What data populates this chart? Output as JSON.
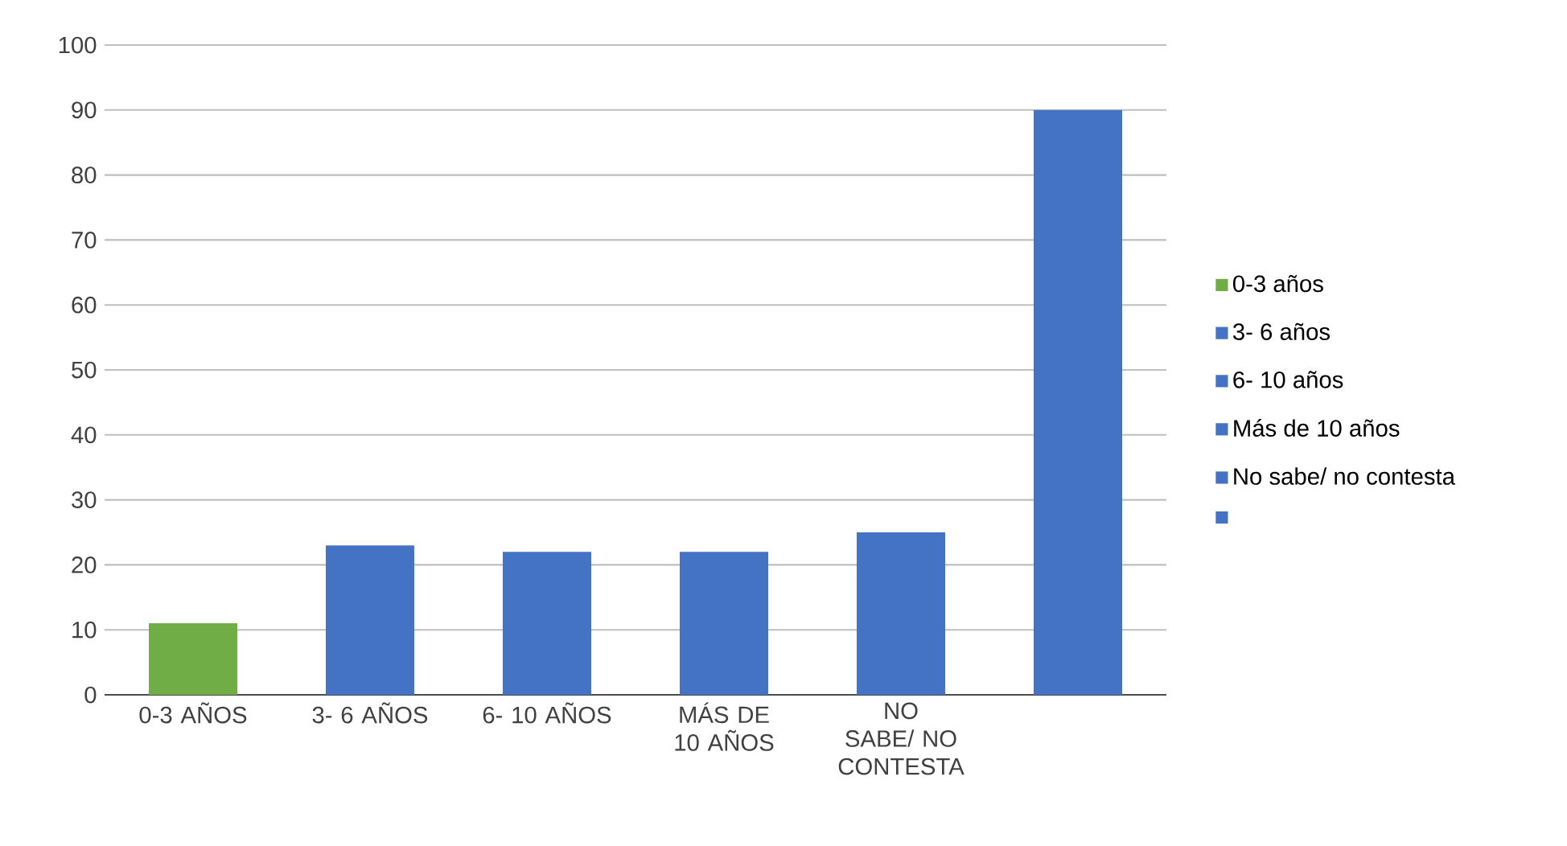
{
  "chart_data": {
    "type": "bar",
    "categories": [
      "0-3 AÑOS",
      "3- 6 AÑOS",
      "6- 10 AÑOS",
      "MÁS DE 10 AÑOS",
      "NO SABE/ NO CONTESTA",
      null
    ],
    "series": [
      {
        "name": "0-3 años",
        "color": "#70ad47",
        "values": [
          11,
          null,
          null,
          null,
          null,
          null
        ]
      },
      {
        "name": "3- 6 años",
        "color": "#4472c4",
        "values": [
          null,
          23,
          null,
          null,
          null,
          null
        ]
      },
      {
        "name": "6- 10 años",
        "color": "#4472c4",
        "values": [
          null,
          null,
          22,
          null,
          null,
          null
        ]
      },
      {
        "name": "Más de 10 años",
        "color": "#4472c4",
        "values": [
          null,
          null,
          null,
          22,
          null,
          null
        ]
      },
      {
        "name": "No sabe/ no contesta",
        "color": "#4472c4",
        "values": [
          null,
          null,
          null,
          null,
          25,
          null
        ]
      },
      {
        "color": "#4472c4",
        "values": [
          null,
          null,
          null,
          null,
          null,
          90
        ]
      }
    ],
    "ylim": [
      0,
      100
    ],
    "yticks": [
      0,
      10,
      20,
      30,
      40,
      50,
      60,
      70,
      80,
      90,
      100
    ],
    "grid": "y",
    "legend": "right"
  }
}
